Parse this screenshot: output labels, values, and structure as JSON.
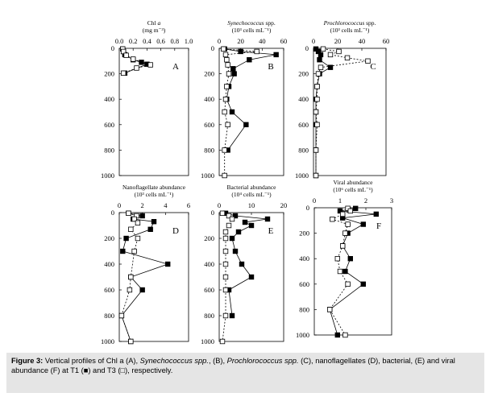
{
  "caption": {
    "label": "Figure 3:",
    "p1": " Vertical profiles of Chl a (A), ",
    "i1": "Synechococcus spp.",
    "p2": ", (B), ",
    "i2": "Prochlorococcus spp.",
    "p3": " (C), nanoflagellates (D), bacterial, (E) and viral abundance (F) at T1 (■) and T3 (□), respectively."
  },
  "chart_data": [
    {
      "type": "line",
      "letter": "A",
      "title": "Chl a",
      "title_italic": "a",
      "unit": "(mg m⁻³)",
      "xlim": [
        0,
        1.0
      ],
      "xticks": [
        "0.0",
        "0.2",
        "0.4",
        "0.6",
        "0.8",
        "1.0"
      ],
      "ylim": [
        0,
        1000
      ],
      "yticks": [
        "0",
        "200",
        "400",
        "600",
        "800",
        "1000"
      ],
      "series": [
        {
          "name": "T1",
          "points": [
            [
              0.05,
              5
            ],
            [
              0.06,
              25
            ],
            [
              0.08,
              50
            ],
            [
              0.2,
              90
            ],
            [
              0.32,
              110
            ],
            [
              0.4,
              125
            ],
            [
              0.08,
              195
            ]
          ]
        },
        {
          "name": "T3",
          "points": [
            [
              0.05,
              5
            ],
            [
              0.06,
              25
            ],
            [
              0.1,
              55
            ],
            [
              0.2,
              85
            ],
            [
              0.45,
              130
            ],
            [
              0.25,
              155
            ],
            [
              0.06,
              195
            ]
          ]
        }
      ]
    },
    {
      "type": "line",
      "letter": "B",
      "title": "Synechococcus spp.",
      "title_italic": "Synechococcus",
      "unit": "(10³ cells mL⁻¹)",
      "xlim": [
        0,
        60
      ],
      "xticks": [
        "0",
        "20",
        "40",
        "60"
      ],
      "ylim": [
        0,
        1000
      ],
      "yticks": [
        "0",
        "200",
        "400",
        "600",
        "800",
        "1000"
      ],
      "series": [
        {
          "name": "T1",
          "points": [
            [
              5,
              5
            ],
            [
              20,
              25
            ],
            [
              53,
              50
            ],
            [
              28,
              90
            ],
            [
              13,
              160
            ],
            [
              14,
              200
            ],
            [
              9,
              300
            ],
            [
              7,
              400
            ],
            [
              12,
              500
            ],
            [
              25,
              600
            ],
            [
              8,
              800
            ]
          ]
        },
        {
          "name": "T3",
          "points": [
            [
              4,
              5
            ],
            [
              35,
              25
            ],
            [
              6,
              50
            ],
            [
              7,
              90
            ],
            [
              8,
              130
            ],
            [
              9,
              200
            ],
            [
              7,
              300
            ],
            [
              6,
              400
            ],
            [
              5,
              500
            ],
            [
              8,
              600
            ],
            [
              5,
              800
            ],
            [
              5,
              1000
            ]
          ]
        }
      ]
    },
    {
      "type": "line",
      "letter": "C",
      "title": "Prochlorococcus spp.",
      "title_italic": "Prochlorococcus",
      "unit": "(10³ cells mL⁻¹)",
      "xlim": [
        0,
        60
      ],
      "xticks": [
        "0",
        "20",
        "40",
        "60"
      ],
      "ylim": [
        0,
        1000
      ],
      "yticks": [
        "0",
        "200",
        "400",
        "600",
        "800",
        "1000"
      ],
      "series": [
        {
          "name": "T1",
          "points": [
            [
              2,
              5
            ],
            [
              4,
              25
            ],
            [
              6,
              50
            ],
            [
              5,
              90
            ],
            [
              14,
              150
            ],
            [
              5,
              200
            ],
            [
              3,
              300
            ],
            [
              2,
              400
            ],
            [
              2,
              500
            ],
            [
              2,
              600
            ],
            [
              2,
              800
            ],
            [
              2,
              1000
            ]
          ]
        },
        {
          "name": "T3",
          "points": [
            [
              8,
              5
            ],
            [
              21,
              25
            ],
            [
              14,
              50
            ],
            [
              28,
              75
            ],
            [
              45,
              100
            ],
            [
              6,
              150
            ],
            [
              4,
              200
            ],
            [
              3,
              300
            ],
            [
              3,
              400
            ],
            [
              2,
              500
            ],
            [
              3,
              600
            ],
            [
              2,
              800
            ],
            [
              2,
              1000
            ]
          ]
        }
      ]
    },
    {
      "type": "line",
      "letter": "D",
      "title": "Nanoflagellate abundance",
      "unit": "(10³ cells mL⁻¹)",
      "xlim": [
        0,
        6
      ],
      "xticks": [
        "0",
        "2",
        "4",
        "6"
      ],
      "ylim": [
        0,
        1000
      ],
      "yticks": [
        "0",
        "200",
        "400",
        "600",
        "800",
        "1000"
      ],
      "series": [
        {
          "name": "T1",
          "points": [
            [
              0.8,
              5
            ],
            [
              2.0,
              25
            ],
            [
              1.2,
              50
            ],
            [
              3.0,
              70
            ],
            [
              2.7,
              130
            ],
            [
              0.6,
              200
            ],
            [
              0.3,
              300
            ],
            [
              4.2,
              400
            ],
            [
              1.0,
              500
            ],
            [
              2.0,
              600
            ],
            [
              0.2,
              800
            ],
            [
              1.0,
              1000
            ]
          ]
        },
        {
          "name": "T3",
          "points": [
            [
              0.8,
              5
            ],
            [
              1.5,
              25
            ],
            [
              1.3,
              50
            ],
            [
              1.6,
              80
            ],
            [
              1.0,
              130
            ],
            [
              1.6,
              200
            ],
            [
              1.3,
              300
            ],
            [
              1.0,
              500
            ],
            [
              0.9,
              600
            ],
            [
              0.2,
              800
            ],
            [
              1.0,
              1000
            ]
          ]
        }
      ]
    },
    {
      "type": "line",
      "letter": "E",
      "title": "Bacterial abundance",
      "unit": "(10⁴ cells mL⁻¹)",
      "xlim": [
        0,
        20
      ],
      "xticks": [
        "0",
        "10",
        "20"
      ],
      "ylim": [
        0,
        1000
      ],
      "yticks": [
        "0",
        "200",
        "400",
        "600",
        "800",
        "1000"
      ],
      "series": [
        {
          "name": "T1",
          "points": [
            [
              2,
              5
            ],
            [
              5,
              25
            ],
            [
              15,
              50
            ],
            [
              8,
              75
            ],
            [
              10,
              100
            ],
            [
              6,
              150
            ],
            [
              4,
              200
            ],
            [
              5,
              300
            ],
            [
              7,
              400
            ],
            [
              10,
              500
            ],
            [
              3,
              600
            ],
            [
              4,
              800
            ]
          ]
        },
        {
          "name": "T3",
          "points": [
            [
              1,
              5
            ],
            [
              3,
              25
            ],
            [
              4,
              50
            ],
            [
              3,
              100
            ],
            [
              2,
              150
            ],
            [
              2,
              200
            ],
            [
              2,
              300
            ],
            [
              2,
              400
            ],
            [
              2,
              500
            ],
            [
              2,
              600
            ],
            [
              2,
              800
            ],
            [
              1,
              1000
            ]
          ]
        }
      ]
    },
    {
      "type": "line",
      "letter": "F",
      "title": "Viral abundance",
      "unit": "(10⁶ cells mL⁻¹)",
      "xlim": [
        0,
        3
      ],
      "xticks": [
        "0",
        "1",
        "2",
        "3"
      ],
      "ylim": [
        0,
        1000
      ],
      "yticks": [
        "0",
        "200",
        "400",
        "600",
        "800",
        "1000"
      ],
      "series": [
        {
          "name": "T1",
          "points": [
            [
              1.6,
              5
            ],
            [
              1.0,
              25
            ],
            [
              2.4,
              50
            ],
            [
              1.1,
              80
            ],
            [
              1.9,
              130
            ],
            [
              1.3,
              200
            ],
            [
              1.1,
              300
            ],
            [
              1.4,
              400
            ],
            [
              1.2,
              500
            ],
            [
              1.9,
              600
            ],
            [
              0.6,
              800
            ],
            [
              0.9,
              1000
            ]
          ]
        },
        {
          "name": "T3",
          "points": [
            [
              1.3,
              5
            ],
            [
              1.4,
              25
            ],
            [
              1.1,
              50
            ],
            [
              0.7,
              90
            ],
            [
              1.3,
              130
            ],
            [
              1.2,
              200
            ],
            [
              1.1,
              300
            ],
            [
              0.9,
              400
            ],
            [
              1.0,
              500
            ],
            [
              1.3,
              600
            ],
            [
              0.6,
              800
            ],
            [
              1.2,
              1000
            ]
          ]
        }
      ]
    }
  ]
}
